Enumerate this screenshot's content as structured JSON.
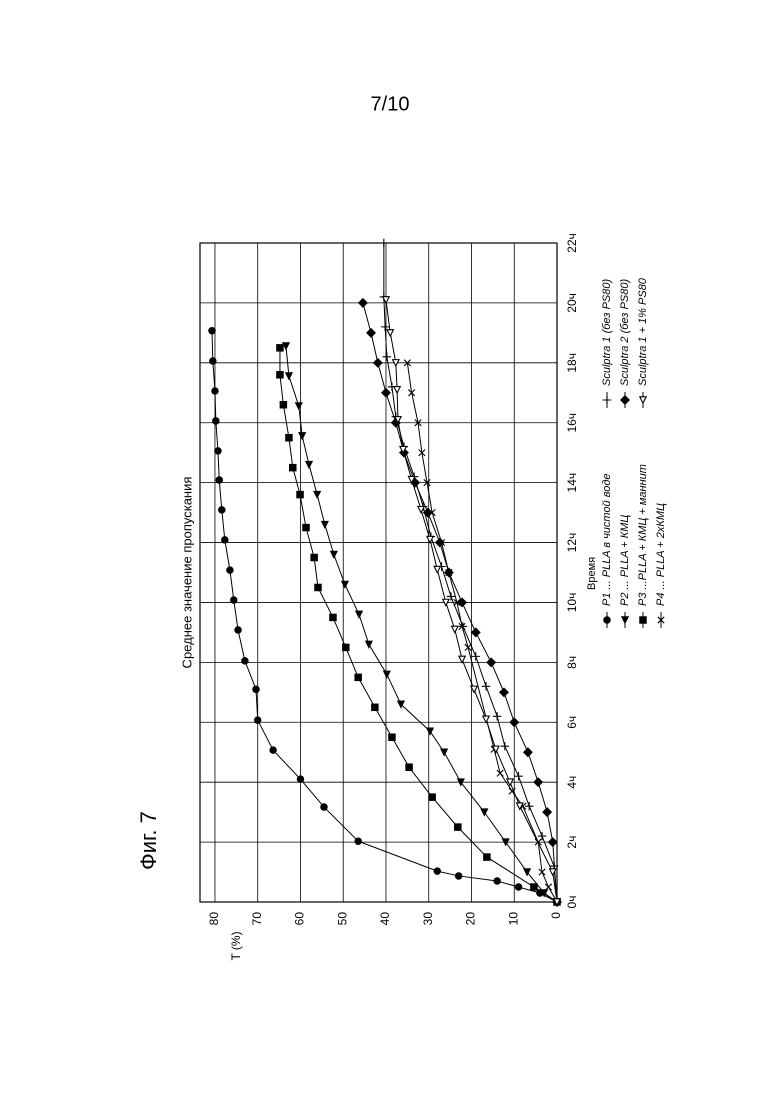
{
  "page_number": "7/10",
  "figure_label": "Фиг. 7",
  "chart_data": {
    "type": "line",
    "title": "Среднее значение пропускания",
    "x_label": "Время",
    "y_label": "T (%)",
    "xlim": [
      0,
      22
    ],
    "ylim": [
      0,
      83.5
    ],
    "xticks": [
      {
        "value": 0,
        "label": "0ч"
      },
      {
        "value": 2,
        "label": "2ч"
      },
      {
        "value": 4,
        "label": "4ч"
      },
      {
        "value": 6,
        "label": "6ч"
      },
      {
        "value": 8,
        "label": "8ч"
      },
      {
        "value": 10,
        "label": "10ч"
      },
      {
        "value": 12,
        "label": "12ч"
      },
      {
        "value": 14,
        "label": "14ч"
      },
      {
        "value": 16,
        "label": "16ч"
      },
      {
        "value": 18,
        "label": "18ч"
      },
      {
        "value": 20,
        "label": "20ч"
      },
      {
        "value": 22,
        "label": "22ч"
      }
    ],
    "yticks": [
      0,
      10,
      20,
      30,
      40,
      50,
      60,
      70,
      80
    ],
    "grid": true,
    "legend_position": "bottom",
    "series": [
      {
        "name": "P1 ... PLLA в чистой воде",
        "color": "#000000",
        "marker": "circle",
        "x": [
          0,
          0.3,
          0.5,
          0.7,
          0.87,
          1.03,
          2.03,
          3.17,
          4.1,
          5.07,
          6.07,
          7.1,
          8.05,
          9.08,
          10.08,
          11.08,
          12.09,
          13.09,
          14.09,
          15.06,
          16.06,
          17.06,
          18.06,
          19.07
        ],
        "values": [
          0,
          4,
          9,
          14,
          23,
          28,
          46.5,
          54.5,
          60,
          66.4,
          70,
          70.4,
          73,
          74.6,
          75.6,
          76.5,
          77.7,
          78.4,
          79,
          79.3,
          79.8,
          80,
          80.5,
          80.7
        ]
      },
      {
        "name": "P2 ... PLLA + КМЦ",
        "color": "#000000",
        "marker": "triangle-left",
        "x": [
          0,
          0.3,
          1,
          2,
          3,
          4,
          5,
          5.7,
          6.6,
          7.6,
          8.6,
          9.6,
          10.6,
          11.6,
          12.6,
          13.6,
          14.6,
          15.56,
          16.56,
          17.56,
          18.56
        ],
        "values": [
          0,
          3,
          7,
          12,
          17,
          22.5,
          26.4,
          29.7,
          36.5,
          39.8,
          44,
          46.3,
          49.6,
          52.2,
          54.3,
          56.1,
          58,
          59.6,
          60.4,
          62.7,
          63.4
        ]
      },
      {
        "name": "P3 ...PLLA + КМЦ + маннит",
        "color": "#000000",
        "marker": "square",
        "x": [
          0,
          0.5,
          1.5,
          2.5,
          3.5,
          4.5,
          5.5,
          6.5,
          7.5,
          8.5,
          9.5,
          10.5,
          11.5,
          12.5,
          13.6,
          14.5,
          15.5,
          16.6,
          17.6,
          18.5
        ],
        "values": [
          0,
          5.4,
          16.4,
          23.2,
          29.2,
          34.6,
          38.6,
          42.6,
          46.5,
          49.4,
          52.4,
          55.9,
          56.8,
          58.7,
          60.1,
          61.8,
          62.7,
          64,
          64.8,
          64.8
        ]
      },
      {
        "name": "P4 ... PLLA + 2xКМЦ",
        "color": "#000000",
        "marker": "x",
        "x": [
          0,
          0.5,
          1,
          2,
          3.2,
          3.7,
          4.3,
          5.1,
          8.5,
          9.2,
          10,
          11,
          12,
          13,
          14,
          15,
          16,
          17,
          18
        ],
        "values": [
          0,
          2,
          3.5,
          4.4,
          8,
          10.5,
          13.3,
          14.7,
          20.8,
          22.2,
          23.4,
          25.3,
          27,
          29.2,
          30.4,
          31.6,
          32.5,
          34,
          35
        ]
      },
      {
        "name": "Sculptra 1 (без PS80)",
        "color": "#000000",
        "marker": "plus",
        "x": [
          0,
          1.2,
          2.2,
          3.2,
          4.2,
          5.2,
          6.2,
          7.2,
          8.2,
          9.2,
          10.2,
          11.2,
          12.2,
          13.2,
          14.2,
          15.2,
          16.2,
          17.2,
          18.2,
          19.2,
          20.2,
          22
        ],
        "values": [
          0,
          0.7,
          3.5,
          6.5,
          9,
          12.2,
          14,
          16.6,
          19,
          22,
          24.8,
          27,
          29.5,
          31.3,
          33.4,
          35.8,
          37.7,
          38.6,
          39.8,
          40.2,
          40.5,
          40.5
        ]
      },
      {
        "name": "Sculptra 2 (без PS80)",
        "color": "#000000",
        "marker": "diamond",
        "x": [
          0,
          2,
          3,
          4,
          5,
          6,
          7,
          8,
          9,
          10,
          11,
          12,
          13,
          14,
          15,
          16,
          17,
          18,
          19,
          20
        ],
        "values": [
          0,
          1,
          2.3,
          4.4,
          6.8,
          10,
          12.4,
          15.4,
          19,
          22.2,
          25.3,
          27.4,
          30.2,
          33.2,
          35.8,
          37.7,
          40,
          41.9,
          43.5,
          45.4
        ]
      },
      {
        "name": "Sculptra 1 + 1% PS80",
        "color": "#000000",
        "marker": "open-triangle",
        "x": [
          0,
          1,
          3.2,
          4,
          5.1,
          6.1,
          7.1,
          8.1,
          9.1,
          10,
          11.1,
          12.1,
          13.1,
          14.1,
          15.1,
          16.1,
          17.1,
          18,
          19,
          20.1
        ],
        "values": [
          0,
          1,
          8.7,
          11,
          14.3,
          16.6,
          19.4,
          22.2,
          23.9,
          26,
          28,
          29.7,
          31.8,
          34,
          36,
          37.2,
          37.4,
          37.7,
          39,
          40
        ]
      }
    ]
  }
}
